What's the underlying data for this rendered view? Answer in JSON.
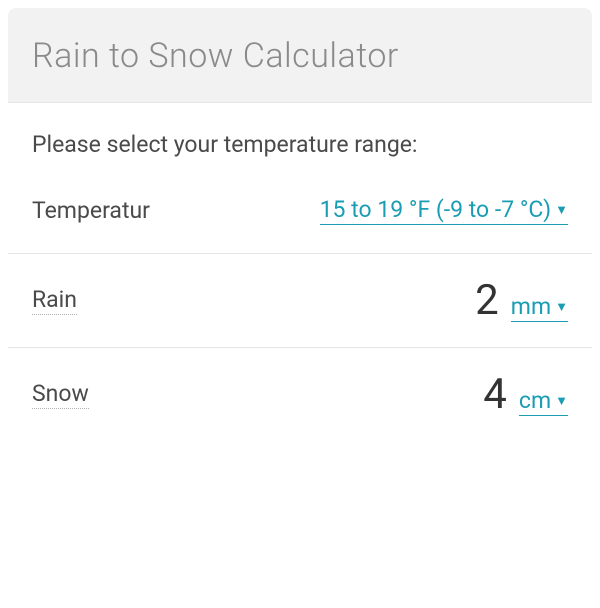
{
  "title": "Rain to Snow Calculator",
  "prompt": "Please select your temperature range:",
  "temperature": {
    "label": "Temperatur",
    "value": "15 to 19 °F (-9 to -7 °C) "
  },
  "rain": {
    "label": "Rain",
    "value": "2",
    "unit": "mm "
  },
  "snow": {
    "label": "Snow",
    "value": "4",
    "unit": "cm "
  },
  "colors": {
    "background": "#f2f2f2",
    "section_bg": "#ffffff",
    "title_color": "#8a8a8a",
    "text_color": "#4a4a4a",
    "value_color": "#333333",
    "accent": "#1a9db3",
    "divider": "#e6e6e6",
    "dotted": "#b0b0b0"
  },
  "typography": {
    "title_size": 34,
    "label_size": 23,
    "value_size": 42,
    "unit_size": 23
  }
}
